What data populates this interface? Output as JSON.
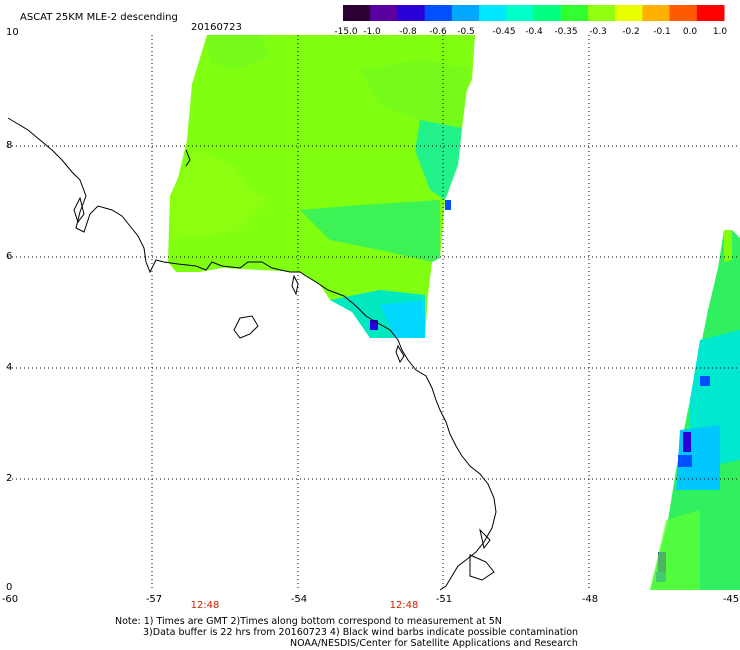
{
  "header": {
    "title": "ASCAT 25KM MLE-2 descending",
    "date": "20160723"
  },
  "colorbar": {
    "labels": [
      "-15.0",
      "-1.0",
      "-0.8",
      "-0.6",
      "-0.5",
      "-0.45",
      "-0.4",
      "-0.35",
      "-0.3",
      "-0.2",
      "-0.1",
      "0.0",
      "1.0"
    ],
    "colors": [
      "#2a0035",
      "#5a00a0",
      "#2a00d8",
      "#0050ff",
      "#00a8ff",
      "#00e8ff",
      "#00ffc8",
      "#00ff80",
      "#30ff30",
      "#90ff10",
      "#e8ff00",
      "#ffb000",
      "#ff5a00",
      "#ff0000"
    ]
  },
  "axes": {
    "lon_labels": [
      "-60",
      "-57",
      "-54",
      "-51",
      "-48",
      "-45"
    ],
    "lat_labels": [
      "10",
      "8",
      "6",
      "4",
      "2",
      "0"
    ],
    "time_labels": [
      "12:48",
      "12:48"
    ]
  },
  "notes": {
    "line1": "Note: 1) Times are GMT 2)Times along bottom correspond to measurement at 5N",
    "line2": "3)Data buffer is 22 hrs from 20160723 4) Black wind barbs indicate possible contamination",
    "line3": "NOAA/NESDIS/Center for Satellite Applications and Research"
  },
  "map": {
    "lon_range": [
      -60,
      -45
    ],
    "lat_range": [
      0,
      10
    ],
    "grid": true,
    "land_color": "#ffffff",
    "coast_color": "#000000"
  }
}
